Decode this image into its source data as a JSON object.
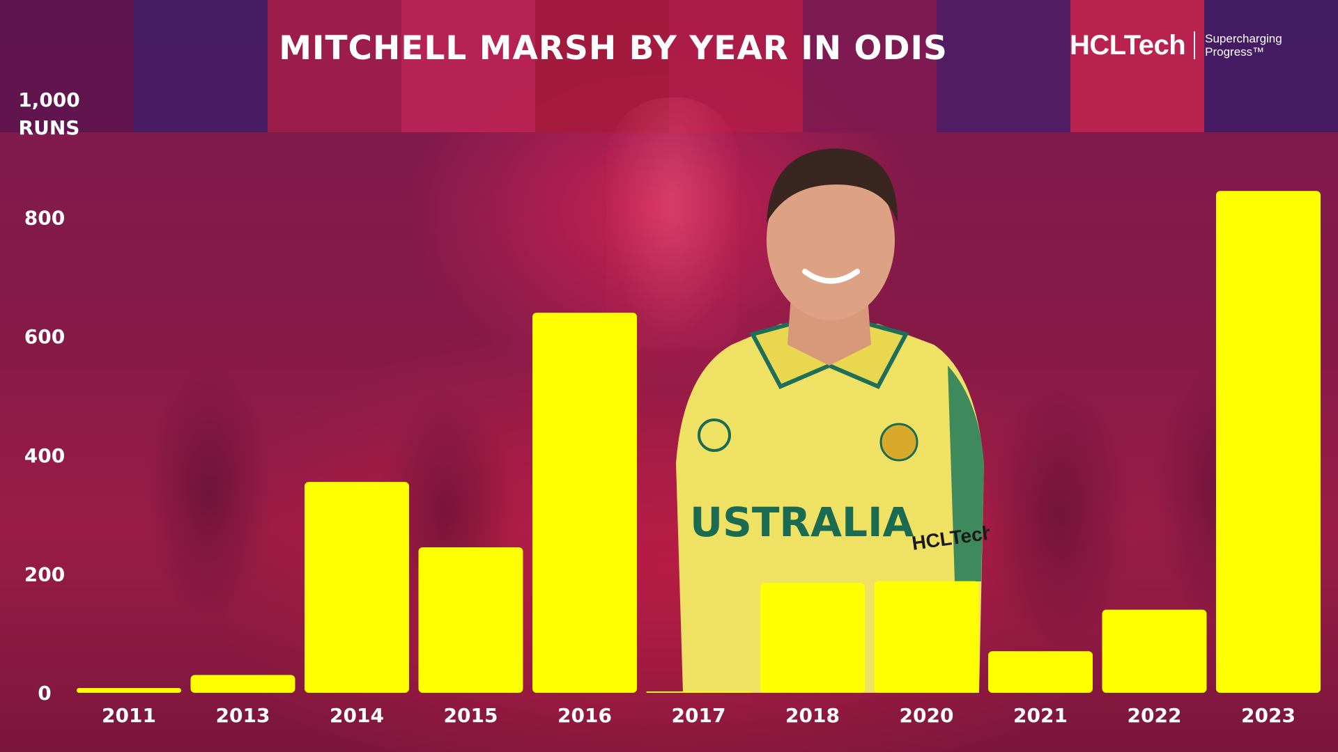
{
  "title": "MITCHELL MARSH BY YEAR IN ODIS",
  "logo": {
    "brand": "HCLTech",
    "tagline_line1": "Supercharging",
    "tagline_line2": "Progress™"
  },
  "colors": {
    "bar": "#ffff00",
    "text": "#ffffff",
    "background": "#8a1a47"
  },
  "chart_data": {
    "type": "bar",
    "title": "MITCHELL MARSH BY YEAR IN ODIS",
    "ylabel_line1": "1,000",
    "ylabel_line2": "RUNS",
    "xlabel": "",
    "categories": [
      "2011",
      "2013",
      "2014",
      "2015",
      "2016",
      "2017",
      "2018",
      "2020",
      "2021",
      "2022",
      "2023"
    ],
    "values": [
      8,
      30,
      355,
      245,
      640,
      2,
      185,
      188,
      70,
      140,
      845
    ],
    "y_ticks": [
      0,
      200,
      400,
      600,
      800
    ],
    "y_tick_labels": [
      "0",
      "200",
      "400",
      "600",
      "800"
    ],
    "ylim": [
      0,
      1000
    ],
    "grid": false,
    "legend": "none"
  }
}
